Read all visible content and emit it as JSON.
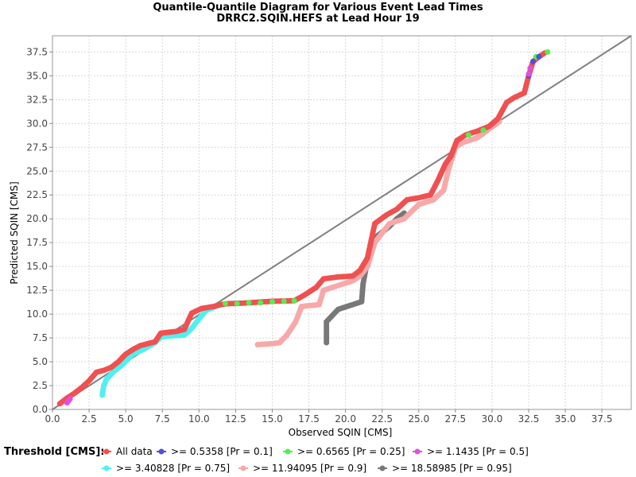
{
  "chart_data": {
    "type": "scatter",
    "title": "Quantile-Quantile Diagram for Various Event Lead Times",
    "subtitle": "DRRC2.SQIN.HEFS at Lead Hour 19",
    "xlabel": "Observed SQIN [CMS]",
    "ylabel": "Predicted SQIN [CMS]",
    "xlim": [
      0,
      39.5
    ],
    "ylim": [
      0,
      39.2
    ],
    "x_ticks": [
      "0.0",
      "2.5",
      "5.0",
      "7.5",
      "10.0",
      "12.5",
      "15.0",
      "17.5",
      "20.0",
      "22.5",
      "25.0",
      "27.5",
      "30.0",
      "32.5",
      "35.0",
      "37.5"
    ],
    "y_ticks": [
      "0.0",
      "2.5",
      "5.0",
      "7.5",
      "10.0",
      "12.5",
      "15.0",
      "17.5",
      "20.0",
      "22.5",
      "25.0",
      "27.5",
      "30.0",
      "32.5",
      "35.0",
      "37.5"
    ],
    "grid": true,
    "reference_line": {
      "from": [
        0,
        0
      ],
      "to": [
        39.5,
        39.2
      ],
      "color": "#808080"
    },
    "legend_title": "Threshold [CMS]:",
    "legend_position": "bottom",
    "series": [
      {
        "name": "All data",
        "color": "#f05050",
        "points": [
          [
            0.5,
            0.6
          ],
          [
            1.0,
            1.2
          ],
          [
            1.5,
            1.7
          ],
          [
            2.0,
            2.3
          ],
          [
            2.5,
            3.0
          ],
          [
            3.0,
            3.9
          ],
          [
            3.5,
            4.1
          ],
          [
            4.0,
            4.4
          ],
          [
            4.5,
            5.0
          ],
          [
            5.0,
            5.8
          ],
          [
            5.5,
            6.3
          ],
          [
            6.0,
            6.7
          ],
          [
            7.0,
            7.1
          ],
          [
            7.4,
            8.0
          ],
          [
            8.5,
            8.2
          ],
          [
            9.0,
            8.4
          ],
          [
            9.5,
            10.1
          ],
          [
            10.2,
            10.6
          ],
          [
            11.0,
            10.8
          ],
          [
            11.5,
            11.0
          ],
          [
            12.0,
            11.1
          ],
          [
            13.0,
            11.15
          ],
          [
            15.0,
            11.35
          ],
          [
            16.5,
            11.4
          ],
          [
            17.2,
            12.0
          ],
          [
            18.0,
            12.8
          ],
          [
            18.5,
            13.7
          ],
          [
            19.5,
            13.9
          ],
          [
            20.5,
            14.0
          ],
          [
            21.0,
            14.6
          ],
          [
            21.5,
            15.9
          ],
          [
            22.0,
            19.5
          ],
          [
            22.8,
            20.4
          ],
          [
            23.5,
            21.0
          ],
          [
            24.2,
            22.0
          ],
          [
            25.0,
            22.2
          ],
          [
            25.8,
            22.5
          ],
          [
            26.3,
            24.0
          ],
          [
            26.8,
            25.7
          ],
          [
            27.2,
            26.6
          ],
          [
            27.6,
            28.2
          ],
          [
            28.2,
            28.8
          ],
          [
            29.0,
            29.2
          ],
          [
            29.8,
            29.7
          ],
          [
            30.4,
            30.5
          ],
          [
            31.0,
            32.2
          ],
          [
            31.5,
            32.7
          ],
          [
            32.2,
            33.2
          ],
          [
            32.5,
            35.0
          ],
          [
            32.8,
            36.5
          ],
          [
            33.2,
            37.0
          ],
          [
            33.6,
            37.4
          ]
        ]
      },
      {
        "name": ">= 0.5358 [Pr = 0.1]",
        "color": "#5050d8",
        "points": [
          [
            32.5,
            35.0
          ],
          [
            32.8,
            36.5
          ],
          [
            33.2,
            37.0
          ]
        ]
      },
      {
        "name": ">= 0.6565 [Pr = 0.25]",
        "color": "#50f050",
        "points": [
          [
            11.8,
            11.1
          ],
          [
            12.6,
            11.1
          ],
          [
            13.4,
            11.2
          ],
          [
            14.2,
            11.2
          ],
          [
            15.0,
            11.3
          ],
          [
            15.8,
            11.35
          ],
          [
            16.5,
            11.4
          ],
          [
            28.4,
            28.8
          ],
          [
            29.4,
            29.3
          ],
          [
            33.0,
            37.0
          ],
          [
            33.8,
            37.5
          ]
        ]
      },
      {
        "name": ">= 1.1435 [Pr = 0.5]",
        "color": "#e050e0",
        "points": [
          [
            1.0,
            0.7
          ],
          [
            1.1,
            0.9
          ],
          [
            1.2,
            1.1
          ],
          [
            32.5,
            35.2
          ],
          [
            32.6,
            35.8
          ]
        ]
      },
      {
        "name": ">= 3.40828 [Pr = 0.75]",
        "color": "#50f0f0",
        "points": [
          [
            3.4,
            1.5
          ],
          [
            3.5,
            2.5
          ],
          [
            3.7,
            3.2
          ],
          [
            4.2,
            4.0
          ],
          [
            4.7,
            4.6
          ],
          [
            5.5,
            5.8
          ],
          [
            6.2,
            6.3
          ],
          [
            7.0,
            7.0
          ],
          [
            7.4,
            7.6
          ],
          [
            8.0,
            7.7
          ],
          [
            9.0,
            7.8
          ],
          [
            9.5,
            8.5
          ],
          [
            10.0,
            9.5
          ],
          [
            10.5,
            10.4
          ],
          [
            11.5,
            11.0
          ]
        ]
      },
      {
        "name": ">= 11.94095 [Pr = 0.9]",
        "color": "#f8a8a8",
        "points": [
          [
            14.0,
            6.8
          ],
          [
            15.0,
            6.9
          ],
          [
            15.5,
            7.0
          ],
          [
            16.0,
            7.8
          ],
          [
            16.6,
            9.2
          ],
          [
            17.0,
            10.8
          ],
          [
            18.2,
            11.0
          ],
          [
            18.5,
            12.5
          ],
          [
            19.5,
            13.0
          ],
          [
            20.5,
            13.5
          ],
          [
            21.0,
            14.0
          ],
          [
            21.5,
            15.0
          ],
          [
            22.0,
            17.5
          ],
          [
            23.0,
            19.5
          ],
          [
            24.0,
            20.0
          ],
          [
            25.0,
            21.5
          ],
          [
            26.0,
            22.0
          ],
          [
            26.7,
            23.0
          ],
          [
            27.0,
            25.0
          ],
          [
            27.5,
            27.5
          ],
          [
            28.0,
            28.0
          ],
          [
            29.0,
            28.5
          ],
          [
            30.5,
            30.2
          ]
        ]
      },
      {
        "name": ">= 18.58985 [Pr = 0.95]",
        "color": "#787878",
        "points": [
          [
            18.7,
            7.0
          ],
          [
            18.7,
            9.2
          ],
          [
            19.5,
            10.5
          ],
          [
            20.3,
            10.9
          ],
          [
            21.1,
            11.3
          ],
          [
            21.2,
            13.2
          ],
          [
            21.4,
            14.8
          ],
          [
            21.6,
            16.0
          ],
          [
            21.8,
            17.0
          ],
          [
            22.0,
            18.0
          ],
          [
            23.0,
            19.2
          ],
          [
            23.5,
            20.0
          ],
          [
            24.0,
            20.6
          ]
        ]
      }
    ]
  }
}
